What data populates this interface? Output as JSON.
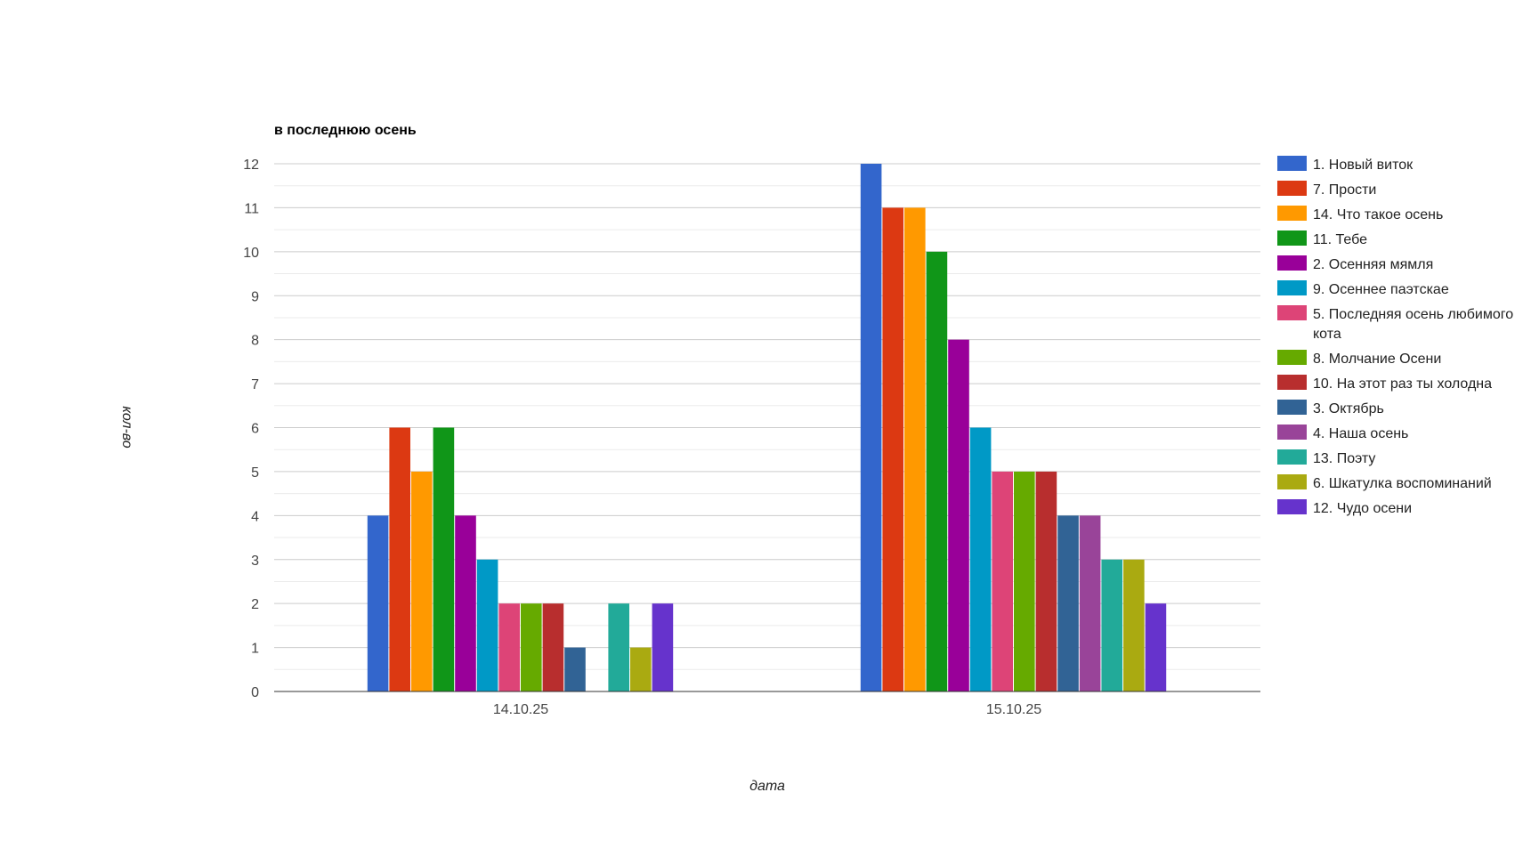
{
  "chart_data": {
    "type": "bar",
    "title": "в последнюю осень",
    "xlabel": "дата",
    "ylabel": "кол-во",
    "categories": [
      "14.10.25",
      "15.10.25"
    ],
    "ylim": [
      0,
      12
    ],
    "yticks": [
      0,
      1,
      2,
      3,
      4,
      5,
      6,
      7,
      8,
      9,
      10,
      11,
      12
    ],
    "grid": true,
    "legend_position": "right",
    "series": [
      {
        "name": "1. Новый виток",
        "color": "#3366cc",
        "values": [
          4,
          12
        ]
      },
      {
        "name": "7. Прости",
        "color": "#dc3912",
        "values": [
          6,
          11
        ]
      },
      {
        "name": "14. Что такое осень",
        "color": "#ff9900",
        "values": [
          5,
          11
        ]
      },
      {
        "name": "11. Тебе",
        "color": "#109618",
        "values": [
          6,
          10
        ]
      },
      {
        "name": "2. Осенняя мямля",
        "color": "#990099",
        "values": [
          4,
          8
        ]
      },
      {
        "name": "9. Осеннее паэтскае",
        "color": "#0099c6",
        "values": [
          3,
          6
        ]
      },
      {
        "name": "5. Последняя осень любимого кота",
        "color": "#dd4477",
        "values": [
          2,
          5
        ]
      },
      {
        "name": "8. Молчание Осени",
        "color": "#66aa00",
        "values": [
          2,
          5
        ]
      },
      {
        "name": "10. На этот раз ты холодна",
        "color": "#b82e2e",
        "values": [
          2,
          5
        ]
      },
      {
        "name": "3. Октябрь",
        "color": "#316395",
        "values": [
          1,
          4
        ]
      },
      {
        "name": "4. Наша осень",
        "color": "#994499",
        "values": [
          0,
          4
        ]
      },
      {
        "name": "13. Поэту",
        "color": "#22aa99",
        "values": [
          2,
          3
        ]
      },
      {
        "name": "6. Шкатулка воспоминаний",
        "color": "#aaaa11",
        "values": [
          1,
          3
        ]
      },
      {
        "name": "12. Чудо осени",
        "color": "#6633cc",
        "values": [
          2,
          2
        ]
      }
    ]
  }
}
